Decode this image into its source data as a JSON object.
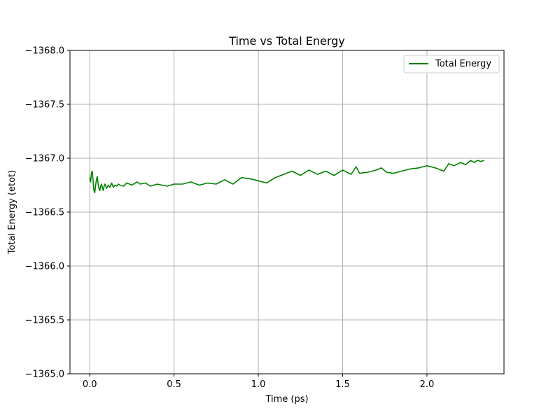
{
  "chart_data": {
    "type": "line",
    "title": "Time vs Total Energy",
    "xlabel": "Time (ps)",
    "ylabel": "Total Energy (etot)",
    "xlim": [
      -0.117,
      2.457
    ],
    "ylim": [
      -1368.0,
      -1365.0
    ],
    "y_inverted": true,
    "x_ticks": [
      0.0,
      0.5,
      1.0,
      1.5,
      2.0
    ],
    "x_tick_labels": [
      "0.0",
      "0.5",
      "1.0",
      "1.5",
      "2.0"
    ],
    "y_ticks": [
      -1368.0,
      -1367.5,
      -1367.0,
      -1366.5,
      -1366.0,
      -1365.5,
      -1365.0
    ],
    "y_tick_labels": [
      "−1368.0",
      "−1367.5",
      "−1367.0",
      "−1366.5",
      "−1366.0",
      "−1365.5",
      "−1365.0"
    ],
    "grid": true,
    "legend_position": "top-right",
    "series": [
      {
        "name": "Total Energy",
        "color": "#008000",
        "x": [
          0.0,
          0.005,
          0.01,
          0.015,
          0.02,
          0.025,
          0.03,
          0.035,
          0.04,
          0.045,
          0.05,
          0.055,
          0.06,
          0.065,
          0.07,
          0.075,
          0.08,
          0.085,
          0.09,
          0.1,
          0.11,
          0.12,
          0.13,
          0.14,
          0.15,
          0.16,
          0.17,
          0.18,
          0.2,
          0.22,
          0.25,
          0.28,
          0.3,
          0.33,
          0.36,
          0.4,
          0.43,
          0.46,
          0.5,
          0.55,
          0.6,
          0.65,
          0.7,
          0.75,
          0.8,
          0.85,
          0.9,
          0.95,
          1.0,
          1.05,
          1.1,
          1.15,
          1.2,
          1.25,
          1.3,
          1.35,
          1.4,
          1.45,
          1.5,
          1.55,
          1.58,
          1.6,
          1.65,
          1.7,
          1.73,
          1.76,
          1.8,
          1.85,
          1.9,
          1.95,
          2.0,
          2.05,
          2.1,
          2.13,
          2.16,
          2.2,
          2.23,
          2.26,
          2.28,
          2.3,
          2.32,
          2.34
        ],
        "y": [
          -1366.82,
          -1366.78,
          -1366.86,
          -1366.88,
          -1366.79,
          -1366.7,
          -1366.68,
          -1366.75,
          -1366.8,
          -1366.83,
          -1366.76,
          -1366.72,
          -1366.7,
          -1366.74,
          -1366.76,
          -1366.73,
          -1366.7,
          -1366.74,
          -1366.76,
          -1366.72,
          -1366.75,
          -1366.73,
          -1366.77,
          -1366.73,
          -1366.75,
          -1366.74,
          -1366.76,
          -1366.75,
          -1366.74,
          -1366.77,
          -1366.75,
          -1366.78,
          -1366.76,
          -1366.77,
          -1366.74,
          -1366.76,
          -1366.75,
          -1366.74,
          -1366.76,
          -1366.76,
          -1366.78,
          -1366.75,
          -1366.77,
          -1366.76,
          -1366.8,
          -1366.76,
          -1366.82,
          -1366.81,
          -1366.79,
          -1366.77,
          -1366.82,
          -1366.85,
          -1366.88,
          -1366.84,
          -1366.89,
          -1366.85,
          -1366.88,
          -1366.84,
          -1366.89,
          -1366.85,
          -1366.92,
          -1366.86,
          -1366.87,
          -1366.89,
          -1366.91,
          -1366.87,
          -1366.86,
          -1366.88,
          -1366.9,
          -1366.91,
          -1366.93,
          -1366.91,
          -1366.88,
          -1366.95,
          -1366.93,
          -1366.96,
          -1366.94,
          -1366.98,
          -1366.96,
          -1366.98,
          -1366.97,
          -1366.98
        ]
      }
    ]
  }
}
